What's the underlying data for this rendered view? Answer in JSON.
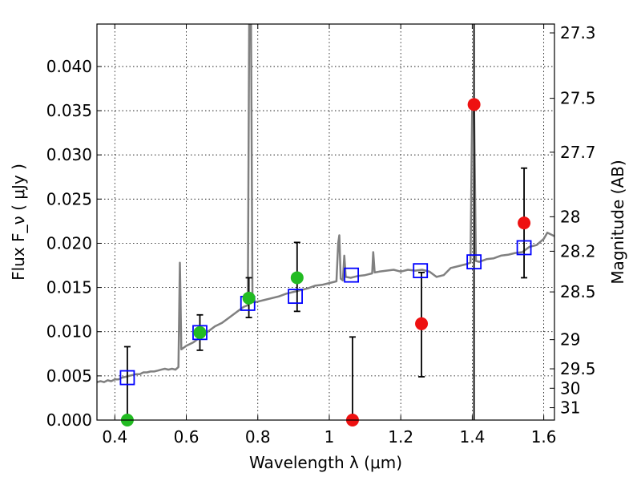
{
  "chart_data": {
    "type": "scatter",
    "xlabel": "Wavelength  λ (μm)",
    "ylabel": "Flux  F_ν  ( μJy )",
    "y2label": "Magnitude (AB)",
    "xlim": [
      0.35,
      1.63
    ],
    "ylim": [
      0.0,
      0.0448
    ],
    "grid": true,
    "x_ticks": [
      0.4,
      0.6,
      0.8,
      1.0,
      1.2,
      1.4,
      1.6
    ],
    "x_tick_labels": [
      "0.4",
      "0.6",
      "0.8",
      "1",
      "1.2",
      "1.4",
      "1.6"
    ],
    "y_ticks": [
      0.0,
      0.005,
      0.01,
      0.015,
      0.02,
      0.025,
      0.03,
      0.035,
      0.04
    ],
    "y_tick_labels": [
      "0.000",
      "0.005",
      "0.010",
      "0.015",
      "0.020",
      "0.025",
      "0.030",
      "0.035",
      "0.040"
    ],
    "mag_ticks": [
      {
        "flux": 0.0438,
        "label": "27.3"
      },
      {
        "flux": 0.0364,
        "label": "27.5"
      },
      {
        "flux": 0.0303,
        "label": "27.7"
      },
      {
        "flux": 0.023,
        "label": "28"
      },
      {
        "flux": 0.0191,
        "label": "28.2"
      },
      {
        "flux": 0.0145,
        "label": "28.5"
      },
      {
        "flux": 0.0091,
        "label": "29"
      },
      {
        "flux": 0.0058,
        "label": "29.5"
      },
      {
        "flux": 0.0036,
        "label": "30"
      },
      {
        "flux": 0.0014,
        "label": "31"
      }
    ],
    "spectrum": {
      "color": "#808080",
      "points": [
        [
          0.35,
          0.0043
        ],
        [
          0.36,
          0.0044
        ],
        [
          0.37,
          0.0043
        ],
        [
          0.38,
          0.0045
        ],
        [
          0.39,
          0.0044
        ],
        [
          0.4,
          0.0046
        ],
        [
          0.41,
          0.0046
        ],
        [
          0.42,
          0.0048
        ],
        [
          0.43,
          0.0049
        ],
        [
          0.44,
          0.005
        ],
        [
          0.45,
          0.0051
        ],
        [
          0.46,
          0.0052
        ],
        [
          0.47,
          0.0052
        ],
        [
          0.48,
          0.0054
        ],
        [
          0.49,
          0.0054
        ],
        [
          0.5,
          0.0055
        ],
        [
          0.51,
          0.0055
        ],
        [
          0.52,
          0.0056
        ],
        [
          0.53,
          0.0057
        ],
        [
          0.54,
          0.0058
        ],
        [
          0.55,
          0.0057
        ],
        [
          0.56,
          0.0058
        ],
        [
          0.57,
          0.0057
        ],
        [
          0.578,
          0.006
        ],
        [
          0.582,
          0.0178
        ],
        [
          0.586,
          0.008
        ],
        [
          0.6,
          0.0084
        ],
        [
          0.62,
          0.0088
        ],
        [
          0.64,
          0.0094
        ],
        [
          0.66,
          0.01
        ],
        [
          0.68,
          0.0106
        ],
        [
          0.7,
          0.011
        ],
        [
          0.72,
          0.0116
        ],
        [
          0.74,
          0.0122
        ],
        [
          0.76,
          0.0128
        ],
        [
          0.772,
          0.013
        ],
        [
          0.776,
          0.0448
        ],
        [
          0.781,
          0.0448
        ],
        [
          0.785,
          0.0135
        ],
        [
          0.79,
          0.0133
        ],
        [
          0.8,
          0.0134
        ],
        [
          0.82,
          0.0136
        ],
        [
          0.84,
          0.0138
        ],
        [
          0.86,
          0.014
        ],
        [
          0.88,
          0.0143
        ],
        [
          0.9,
          0.0145
        ],
        [
          0.92,
          0.0147
        ],
        [
          0.94,
          0.0149
        ],
        [
          0.96,
          0.0152
        ],
        [
          0.98,
          0.0153
        ],
        [
          1.0,
          0.0155
        ],
        [
          1.02,
          0.0157
        ],
        [
          1.025,
          0.02
        ],
        [
          1.028,
          0.0209
        ],
        [
          1.032,
          0.016
        ],
        [
          1.038,
          0.0158
        ],
        [
          1.042,
          0.0186
        ],
        [
          1.046,
          0.0162
        ],
        [
          1.06,
          0.0161
        ],
        [
          1.08,
          0.0163
        ],
        [
          1.1,
          0.0164
        ],
        [
          1.12,
          0.0166
        ],
        [
          1.123,
          0.019
        ],
        [
          1.127,
          0.0167
        ],
        [
          1.14,
          0.0168
        ],
        [
          1.16,
          0.0169
        ],
        [
          1.18,
          0.017
        ],
        [
          1.2,
          0.0168
        ],
        [
          1.22,
          0.017
        ],
        [
          1.24,
          0.0169
        ],
        [
          1.26,
          0.017
        ],
        [
          1.28,
          0.0168
        ],
        [
          1.3,
          0.0162
        ],
        [
          1.32,
          0.0164
        ],
        [
          1.34,
          0.0172
        ],
        [
          1.36,
          0.0174
        ],
        [
          1.38,
          0.0176
        ],
        [
          1.395,
          0.0178
        ],
        [
          1.4,
          0.036
        ],
        [
          1.405,
          0.036
        ],
        [
          1.41,
          0.018
        ],
        [
          1.42,
          0.0179
        ],
        [
          1.44,
          0.0182
        ],
        [
          1.46,
          0.0183
        ],
        [
          1.48,
          0.0186
        ],
        [
          1.5,
          0.0187
        ],
        [
          1.52,
          0.0189
        ],
        [
          1.54,
          0.019
        ],
        [
          1.56,
          0.0196
        ],
        [
          1.58,
          0.0198
        ],
        [
          1.6,
          0.0205
        ],
        [
          1.61,
          0.0212
        ],
        [
          1.62,
          0.021
        ],
        [
          1.63,
          0.0208
        ]
      ]
    },
    "model_points": {
      "color": "#0000ff",
      "marker": "square-open",
      "points": [
        [
          0.435,
          0.0048
        ],
        [
          0.638,
          0.0099
        ],
        [
          0.772,
          0.0132
        ],
        [
          0.905,
          0.014
        ],
        [
          1.062,
          0.0164
        ],
        [
          1.255,
          0.0169
        ],
        [
          1.405,
          0.0179
        ],
        [
          1.545,
          0.0195
        ]
      ]
    },
    "detections": {
      "color": "#22bb22",
      "points": [
        {
          "x": 0.638,
          "y": 0.0099,
          "yerr_low": 0.002,
          "yerr_high": 0.002
        },
        {
          "x": 0.775,
          "y": 0.0138,
          "yerr_low": 0.0022,
          "yerr_high": 0.0023
        },
        {
          "x": 0.91,
          "y": 0.0161,
          "yerr_low": 0.0038,
          "yerr_high": 0.004
        },
        {
          "x": 0.435,
          "y": 0.0,
          "yerr_low": 0.0,
          "yerr_high": 0.0083
        }
      ]
    },
    "nondetections": {
      "color": "#ee1111",
      "points": [
        {
          "x": 1.065,
          "y": 0.0,
          "yerr_low": 0.0,
          "yerr_high": 0.0094
        },
        {
          "x": 1.258,
          "y": 0.0109,
          "yerr_low": 0.006,
          "yerr_high": 0.0058
        },
        {
          "x": 1.405,
          "y": 0.0357,
          "yerr_low": 0.0357,
          "yerr_high": 0.01
        },
        {
          "x": 1.545,
          "y": 0.0223,
          "yerr_low": 0.0062,
          "yerr_high": 0.0062
        }
      ]
    }
  }
}
